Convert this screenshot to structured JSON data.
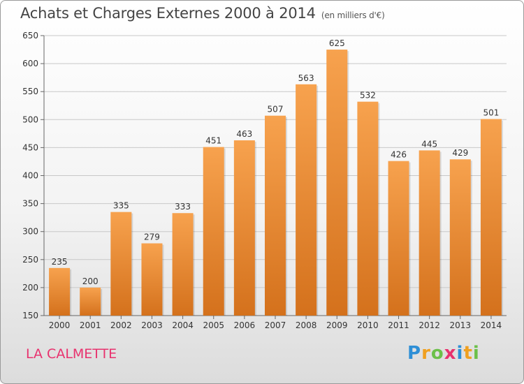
{
  "header": {
    "title": "Achats et Charges Externes 2000 à 2014",
    "unit": "(en milliers d'€)"
  },
  "footer": {
    "city": "LA CALMETTE",
    "logo_letters": [
      "P",
      "r",
      "o",
      "x",
      "i",
      "t",
      "i"
    ],
    "logo_colors": [
      "#2e8fd6",
      "#f0a020",
      "#6cc04a",
      "#e8326e",
      "#2e8fd6",
      "#f0a020",
      "#6cc04a"
    ]
  },
  "colors": {
    "bar_top": "#f7a24e",
    "bar_bottom": "#d4711c",
    "grid": "#c8c8c8"
  },
  "chart_data": {
    "type": "bar",
    "title": "Achats et Charges Externes 2000 à 2014",
    "xlabel": "",
    "ylabel": "",
    "categories": [
      "2000",
      "2001",
      "2002",
      "2003",
      "2004",
      "2005",
      "2006",
      "2007",
      "2008",
      "2009",
      "2010",
      "2011",
      "2012",
      "2013",
      "2014"
    ],
    "values": [
      235,
      200,
      335,
      279,
      333,
      451,
      463,
      507,
      563,
      625,
      532,
      426,
      445,
      429,
      501
    ],
    "ylim": [
      150,
      650
    ],
    "yticks": [
      150,
      200,
      250,
      300,
      350,
      400,
      450,
      500,
      550,
      600,
      650
    ],
    "grid": true
  }
}
